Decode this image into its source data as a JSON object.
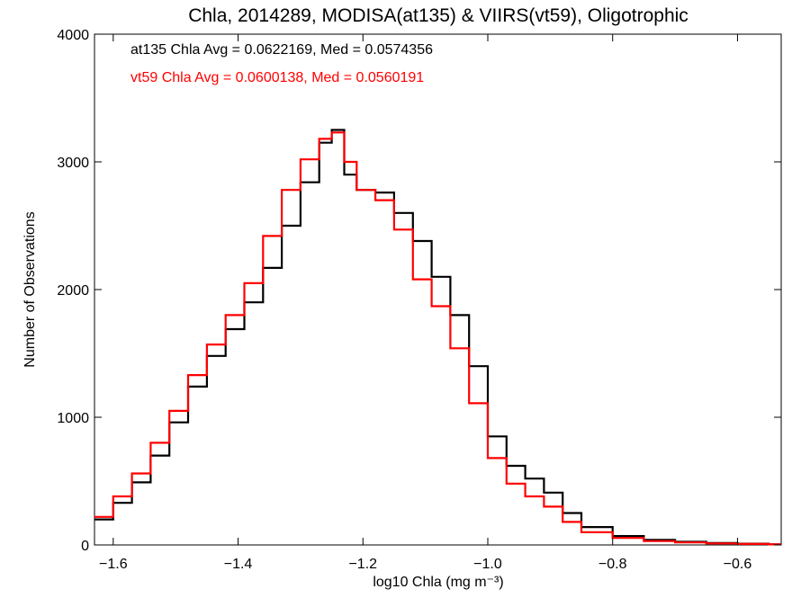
{
  "chart_data": {
    "type": "line",
    "title": "Chla, 2014289, MODISA(at135) & VIIRS(vt59), Oligotrophic",
    "xlabel": "log10 Chla (mg m⁻³)",
    "ylabel": "Number of Observations",
    "xlim": [
      -1.63,
      -0.53
    ],
    "ylim": [
      0,
      4000
    ],
    "x_ticks": [
      -1.6,
      -1.4,
      -1.2,
      -1.0,
      -0.8,
      -0.6
    ],
    "x_tick_labels": [
      "−1.6",
      "−1.4",
      "−1.2",
      "−1.0",
      "−0.8",
      "−0.6"
    ],
    "y_ticks": [
      0,
      1000,
      2000,
      3000,
      4000
    ],
    "y_tick_labels": [
      "0",
      "1000",
      "2000",
      "3000",
      "4000"
    ],
    "grid": false,
    "annotations": [
      {
        "text": "at135 Chla Avg = 0.0622169, Med = 0.0574356",
        "color": "#000000"
      },
      {
        "text": "vt59 Chla Avg = 0.0600138, Med = 0.0560191",
        "color": "#ff0000"
      }
    ],
    "series": [
      {
        "color": "#000000",
        "style": "step",
        "x": [
          -1.63,
          -1.6,
          -1.57,
          -1.54,
          -1.51,
          -1.48,
          -1.45,
          -1.42,
          -1.39,
          -1.36,
          -1.33,
          -1.3,
          -1.27,
          -1.25,
          -1.23,
          -1.21,
          -1.18,
          -1.15,
          -1.12,
          -1.09,
          -1.06,
          -1.03,
          -1.0,
          -0.97,
          -0.94,
          -0.91,
          -0.88,
          -0.85,
          -0.8,
          -0.75,
          -0.7,
          -0.65,
          -0.6,
          -0.55
        ],
        "y": [
          200,
          330,
          490,
          700,
          960,
          1240,
          1480,
          1690,
          1900,
          2170,
          2500,
          2840,
          3150,
          3250,
          2900,
          2780,
          2760,
          2600,
          2380,
          2100,
          1800,
          1400,
          850,
          620,
          520,
          410,
          250,
          140,
          70,
          40,
          25,
          15,
          10,
          5
        ]
      },
      {
        "color": "#ff0000",
        "style": "step",
        "x": [
          -1.63,
          -1.6,
          -1.57,
          -1.54,
          -1.51,
          -1.48,
          -1.45,
          -1.42,
          -1.39,
          -1.36,
          -1.33,
          -1.3,
          -1.27,
          -1.25,
          -1.23,
          -1.21,
          -1.18,
          -1.15,
          -1.12,
          -1.09,
          -1.06,
          -1.03,
          -1.0,
          -0.97,
          -0.94,
          -0.91,
          -0.88,
          -0.85,
          -0.8,
          -0.75,
          -0.7,
          -0.65,
          -0.6,
          -0.55
        ],
        "y": [
          220,
          380,
          560,
          800,
          1050,
          1330,
          1570,
          1800,
          2050,
          2420,
          2780,
          3020,
          3180,
          3230,
          3000,
          2780,
          2700,
          2470,
          2080,
          1870,
          1540,
          1110,
          680,
          480,
          380,
          300,
          180,
          100,
          55,
          30,
          20,
          12,
          8,
          4
        ]
      }
    ]
  }
}
